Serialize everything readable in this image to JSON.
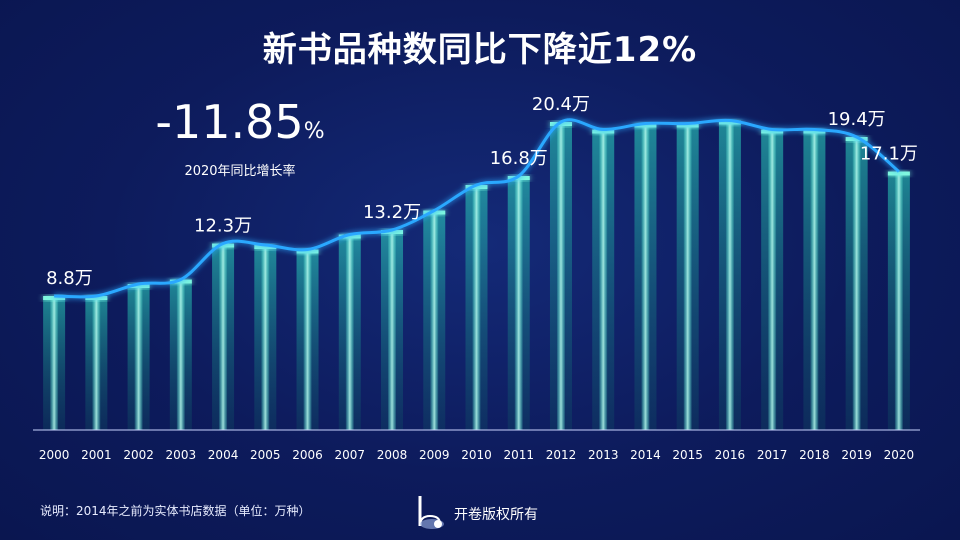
{
  "title": "新书品种数同比下降近12%",
  "kpi": {
    "value": "-11.85",
    "unit": "%",
    "label": "2020年同比增长率"
  },
  "note": "说明：2014年之前为实体书店数据（单位：万种）",
  "brand": {
    "text": "开卷版权所有"
  },
  "colors": {
    "background": "#0d1b5c",
    "bar": "#2ee6c8",
    "line": "#2aa8ff",
    "text": "#ffffff"
  },
  "chart_data": {
    "type": "bar",
    "unit": "万种",
    "categories": [
      "2000",
      "2001",
      "2002",
      "2003",
      "2004",
      "2005",
      "2006",
      "2007",
      "2008",
      "2009",
      "2010",
      "2011",
      "2012",
      "2013",
      "2014",
      "2015",
      "2016",
      "2017",
      "2018",
      "2019",
      "2020"
    ],
    "values": [
      8.8,
      8.8,
      9.6,
      9.9,
      12.3,
      12.2,
      11.9,
      12.9,
      13.2,
      14.5,
      16.2,
      16.8,
      20.4,
      19.9,
      20.3,
      20.3,
      20.5,
      19.9,
      19.9,
      19.4,
      17.1
    ],
    "data_labels": [
      {
        "index": 0,
        "text": "8.8万"
      },
      {
        "index": 4,
        "text": "12.3万"
      },
      {
        "index": 8,
        "text": "13.2万"
      },
      {
        "index": 11,
        "text": "16.8万"
      },
      {
        "index": 12,
        "text": "20.4万"
      },
      {
        "index": 19,
        "text": "19.4万"
      },
      {
        "index": 20,
        "text": "17.1万"
      }
    ],
    "ylim": [
      0,
      23
    ],
    "xlabel": "",
    "ylabel": "",
    "grid": false,
    "overlay": "line"
  }
}
